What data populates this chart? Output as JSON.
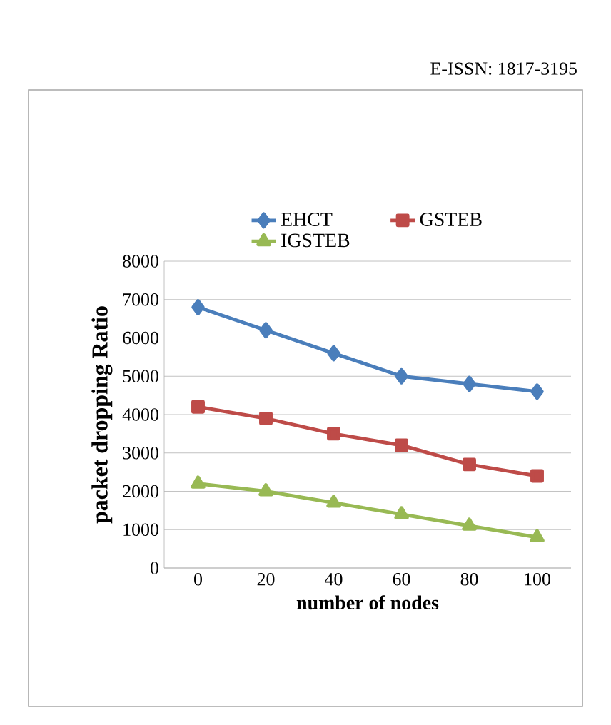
{
  "chart_data": {
    "type": "line",
    "xlabel": "number of nodes",
    "ylabel": "packet dropping Ratio",
    "categories": [
      "0",
      "20",
      "40",
      "60",
      "80",
      "100"
    ],
    "series": [
      {
        "name": "EHCT",
        "color": "#4a7ebb",
        "marker": "diamond",
        "values": [
          6800,
          6200,
          5600,
          5000,
          4800,
          4600
        ]
      },
      {
        "name": "GSTEB",
        "color": "#be4b48",
        "marker": "square",
        "values": [
          4200,
          3900,
          3500,
          3200,
          2700,
          2400
        ]
      },
      {
        "name": "IGSTEB",
        "color": "#98b954",
        "marker": "triangle",
        "values": [
          2200,
          2000,
          1700,
          1400,
          1100,
          800
        ]
      }
    ],
    "ylim": [
      0,
      8000
    ],
    "yticks": [
      0,
      1000,
      2000,
      3000,
      4000,
      5000,
      6000,
      7000,
      8000
    ],
    "grid": "y",
    "legend": "top",
    "annotations": [
      "E-ISSN: 1817-3195"
    ]
  }
}
